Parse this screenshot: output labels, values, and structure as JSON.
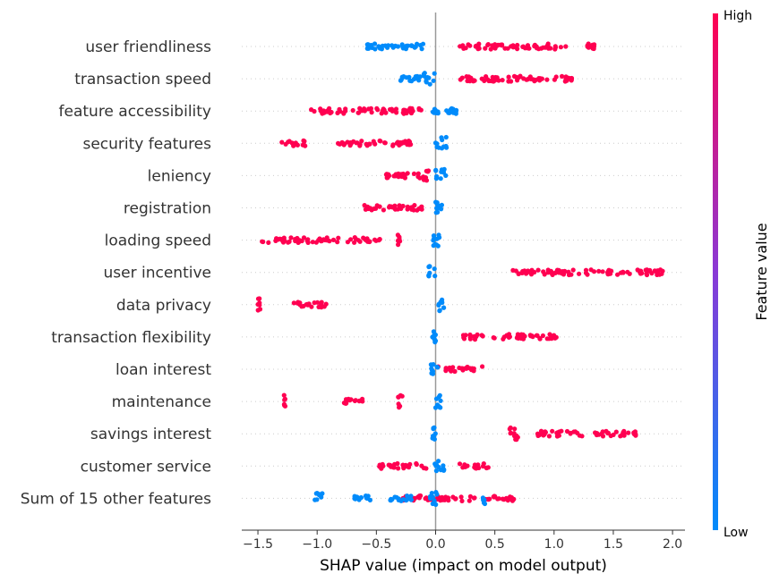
{
  "chart_data": {
    "type": "scatter",
    "subtype": "shap-beeswarm",
    "title": "",
    "xlabel": "SHAP value (impact on model output)",
    "xlim": [
      -1.65,
      2.15
    ],
    "xticks": [
      -1.5,
      -1.0,
      -0.5,
      0.0,
      0.5,
      1.0,
      1.5,
      2.0
    ],
    "xtick_labels": [
      "−1.5",
      "−1.0",
      "−0.5",
      "0.0",
      "0.5",
      "1.0",
      "1.5",
      "2.0"
    ],
    "colorbar": {
      "title": "Feature value",
      "high_label": "High",
      "low_label": "Low",
      "high_color": "#ff0051",
      "low_color": "#008bfb"
    },
    "grid": false,
    "features": [
      {
        "name": "user friendliness",
        "low": [
          [
            -0.6,
            -0.35
          ],
          [
            -0.35,
            -0.1
          ]
        ],
        "high": [
          [
            0.15,
            0.65
          ],
          [
            0.65,
            1.1
          ],
          [
            1.25,
            1.38
          ]
        ]
      },
      {
        "name": "transaction speed",
        "low": [
          [
            -0.3,
            -0.1
          ],
          [
            -0.1,
            0.0
          ]
        ],
        "high": [
          [
            0.2,
            0.6
          ],
          [
            0.6,
            0.95
          ],
          [
            1.0,
            1.15
          ]
        ]
      },
      {
        "name": "feature accessibility",
        "low": [
          [
            -0.05,
            0.2
          ]
        ],
        "high": [
          [
            -1.07,
            -0.75
          ],
          [
            -0.7,
            -0.35
          ],
          [
            -0.35,
            -0.1
          ]
        ]
      },
      {
        "name": "security features",
        "low": [
          [
            0.0,
            0.1
          ]
        ],
        "high": [
          [
            -1.3,
            -1.1
          ],
          [
            -0.85,
            -0.55
          ],
          [
            -0.55,
            -0.2
          ]
        ]
      },
      {
        "name": "leniency",
        "low": [
          [
            0.0,
            0.1
          ]
        ],
        "high": [
          [
            -0.42,
            -0.15
          ],
          [
            -0.15,
            -0.05
          ]
        ]
      },
      {
        "name": "registration",
        "low": [
          [
            0.0,
            0.07
          ]
        ],
        "high": [
          [
            -0.62,
            -0.35
          ],
          [
            -0.35,
            -0.1
          ]
        ]
      },
      {
        "name": "loading speed",
        "low": [
          [
            -0.02,
            0.05
          ]
        ],
        "high": [
          [
            -1.48,
            -1.15
          ],
          [
            -1.15,
            -0.8
          ],
          [
            -0.75,
            -0.45
          ],
          [
            -0.32,
            -0.3
          ]
        ]
      },
      {
        "name": "user incentive",
        "low": [
          [
            -0.06,
            0.0
          ]
        ],
        "high": [
          [
            0.58,
            1.0
          ],
          [
            1.0,
            1.5
          ],
          [
            1.5,
            1.95
          ]
        ]
      },
      {
        "name": "data privacy",
        "low": [
          [
            0.02,
            0.07
          ]
        ],
        "high": [
          [
            -1.5,
            -1.48
          ],
          [
            -1.2,
            -0.92
          ]
        ]
      },
      {
        "name": "transaction flexibility",
        "low": [
          [
            -0.03,
            0.0
          ]
        ],
        "high": [
          [
            0.22,
            0.4
          ],
          [
            0.45,
            0.8
          ],
          [
            0.8,
            1.02
          ]
        ]
      },
      {
        "name": "loan interest",
        "low": [
          [
            -0.05,
            0.02
          ]
        ],
        "high": [
          [
            0.02,
            0.4
          ]
        ]
      },
      {
        "name": "maintenance",
        "low": [
          [
            -0.01,
            0.05
          ]
        ],
        "high": [
          [
            -1.28,
            -1.27
          ],
          [
            -0.78,
            -0.6
          ],
          [
            -0.32,
            -0.28
          ]
        ]
      },
      {
        "name": "savings interest",
        "low": [
          [
            -0.03,
            0.0
          ]
        ],
        "high": [
          [
            0.6,
            0.7
          ],
          [
            0.85,
            1.25
          ],
          [
            1.3,
            1.7
          ]
        ]
      },
      {
        "name": "customer service",
        "low": [
          [
            -0.02,
            0.08
          ]
        ],
        "high": [
          [
            -0.48,
            -0.05
          ],
          [
            0.2,
            0.45
          ]
        ]
      },
      {
        "name": "Sum of 15 other features",
        "low": [
          [
            -1.02,
            -0.95
          ],
          [
            -0.7,
            -0.55
          ],
          [
            -0.4,
            -0.2
          ],
          [
            -0.05,
            0.05
          ],
          [
            0.4,
            0.42
          ]
        ],
        "high": [
          [
            -0.28,
            0.0
          ],
          [
            0.0,
            0.5
          ],
          [
            0.5,
            0.68
          ]
        ]
      }
    ]
  }
}
